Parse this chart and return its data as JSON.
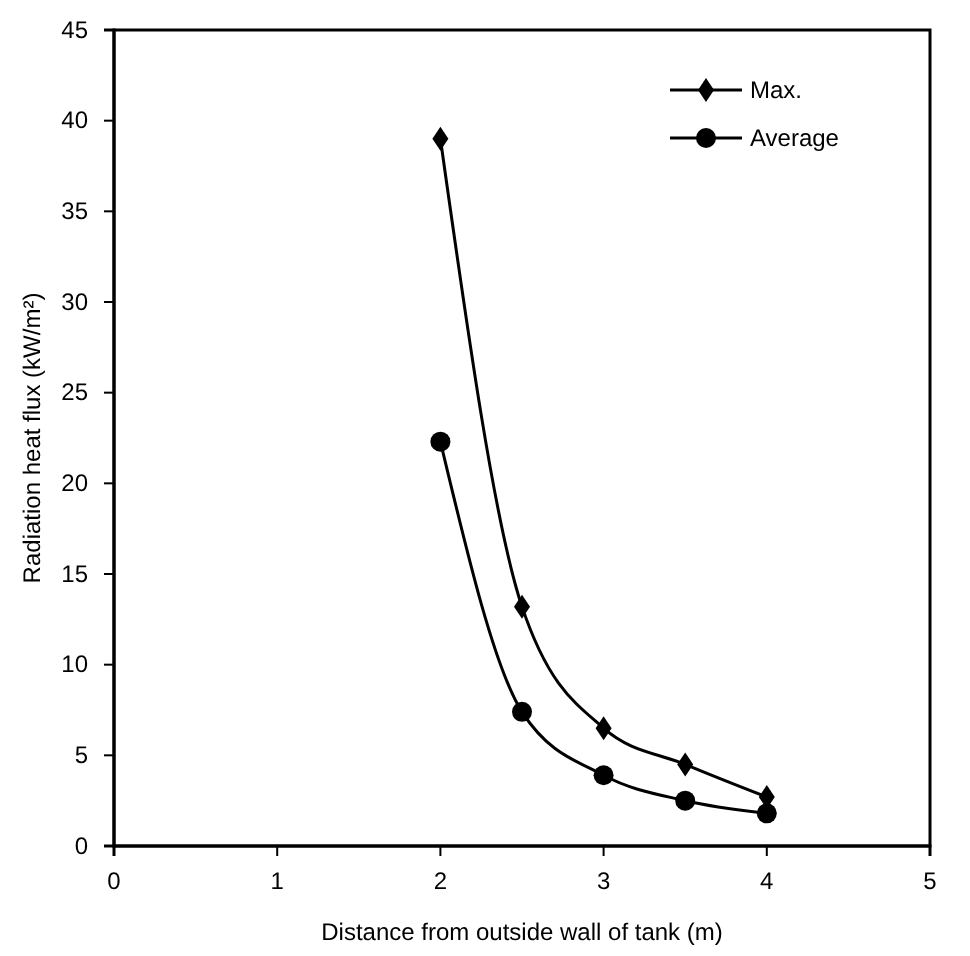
{
  "chart_data": {
    "type": "line",
    "xlabel": "Distance from outside wall of tank (m)",
    "ylabel": "Radiation heat flux (kW/m²)",
    "x": [
      2,
      2.5,
      3,
      3.5,
      4
    ],
    "series": [
      {
        "name": "Max.",
        "color": "#000000",
        "marker": "diamond",
        "values": [
          39,
          13.2,
          6.5,
          4.5,
          2.7
        ]
      },
      {
        "name": "Average",
        "color": "#000000",
        "marker": "circle",
        "values": [
          22.3,
          7.4,
          3.9,
          2.5,
          1.8
        ]
      }
    ],
    "xlim": [
      0,
      5
    ],
    "xticks": [
      0,
      1,
      2,
      3,
      4,
      5
    ],
    "ylim": [
      0,
      45
    ],
    "yticks": [
      0,
      5,
      10,
      15,
      20,
      25,
      30,
      35,
      40,
      45
    ],
    "grid": false,
    "legend": "top right",
    "line_style": "solid"
  }
}
